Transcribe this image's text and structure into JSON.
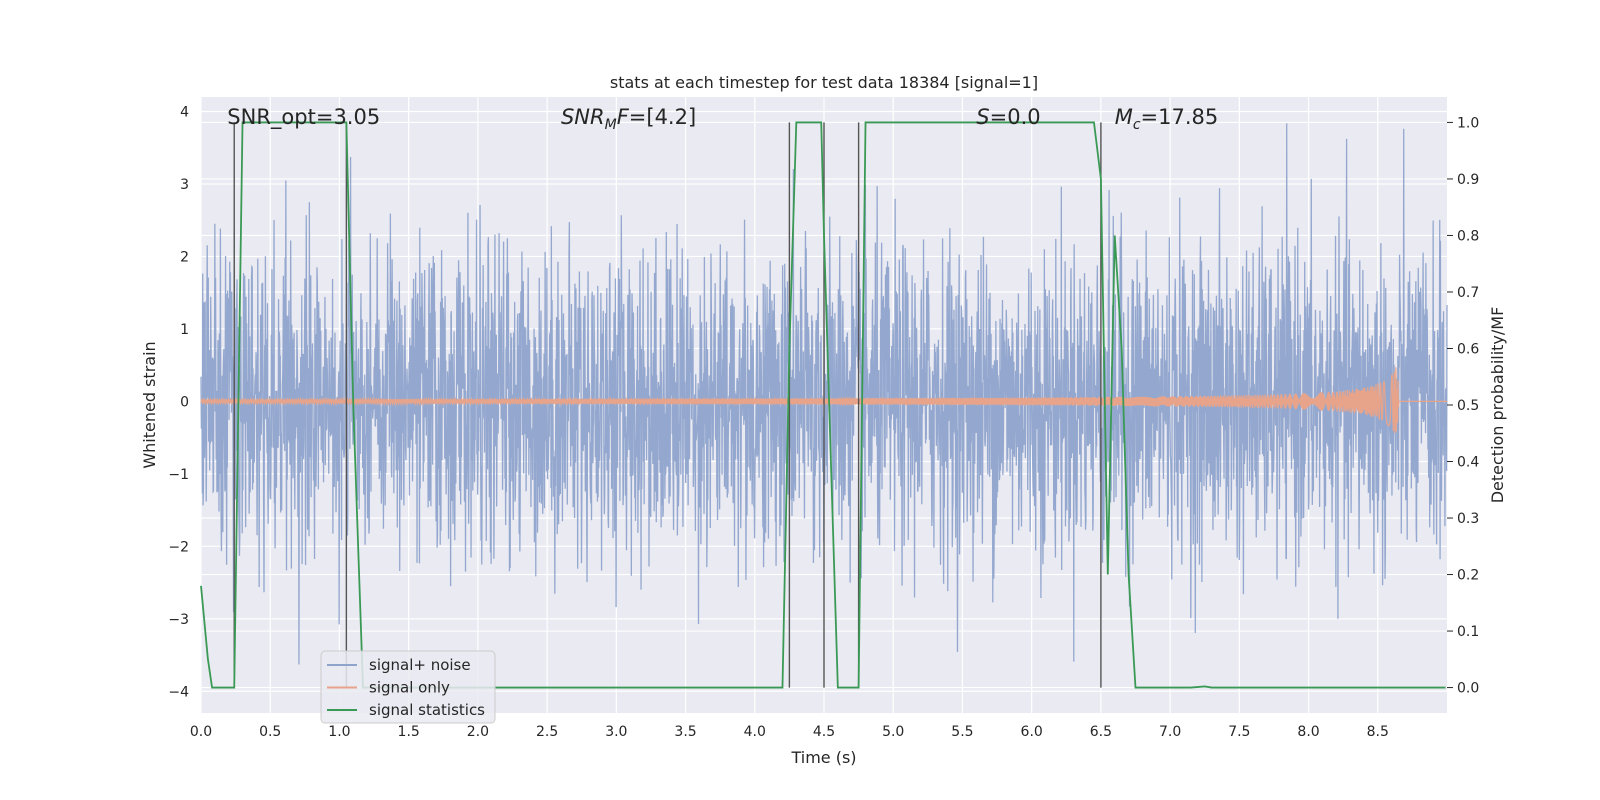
{
  "chart_data": {
    "type": "line",
    "title": "stats at each timestep for test data 18384 [signal=1]",
    "xlabel": "Time (s)",
    "ylabel": "Whitened strain",
    "y2label": "Detection probability/MF",
    "xlim": [
      0,
      9
    ],
    "ylim": [
      -4.3,
      4.2
    ],
    "y2lim": [
      -0.045,
      1.045
    ],
    "xticks": [
      "0.0",
      "0.5",
      "1.0",
      "1.5",
      "2.0",
      "2.5",
      "3.0",
      "3.5",
      "4.0",
      "4.5",
      "5.0",
      "5.5",
      "6.0",
      "6.5",
      "7.0",
      "7.5",
      "8.0",
      "8.5"
    ],
    "yticks": [
      "4",
      "3",
      "2",
      "1",
      "0",
      "−1",
      "−2",
      "−3",
      "−4"
    ],
    "y2ticks": [
      "1.0",
      "0.9",
      "0.8",
      "0.7",
      "0.6",
      "0.5",
      "0.4",
      "0.3",
      "0.2",
      "0.1",
      "0.0"
    ],
    "grid": true,
    "legend_position": "lower-left",
    "annotations": [
      {
        "prefix": "SNR_opt=",
        "value": "3.05",
        "x": 0.19
      },
      {
        "prefix_italic": "SNR",
        "sub": "M",
        "prefix_rest": "F=",
        "value": "[4.2]",
        "x": 2.6
      },
      {
        "prefix_italic": "S",
        "prefix_rest": "=",
        "value": "0.0",
        "x": 5.6
      },
      {
        "prefix_italic": "M",
        "sub": "c",
        "prefix_rest": "=",
        "value": "17.85",
        "x": 6.6
      }
    ],
    "vlines_x": [
      0.24,
      1.05,
      4.25,
      4.5,
      4.75,
      6.5
    ],
    "series": [
      {
        "name": "signal+ noise",
        "color": "#8fa4cc",
        "axis": "left",
        "description_value": "whitened noise, std ≈ 1"
      },
      {
        "name": "signal only",
        "color": "#e8a48a",
        "axis": "left",
        "chirp_end_x": 8.65,
        "chirp_peak_amplitude": 0.65
      },
      {
        "name": "signal statistics",
        "color": "#3a9a55",
        "axis": "right",
        "x": [
          0.0,
          0.05,
          0.08,
          0.24,
          0.3,
          0.33,
          1.05,
          1.1,
          1.17,
          4.2,
          4.25,
          4.3,
          4.48,
          4.5,
          4.6,
          4.72,
          4.75,
          4.8,
          4.85,
          6.45,
          6.5,
          6.55,
          6.6,
          6.65,
          6.7,
          6.75,
          7.15,
          7.25,
          7.3,
          8.99
        ],
        "y": [
          0.18,
          0.05,
          0.0,
          0.0,
          1.0,
          1.0,
          1.0,
          0.5,
          0.0,
          0.0,
          0.6,
          1.0,
          1.0,
          0.8,
          0.0,
          0.0,
          0.0,
          1.0,
          1.0,
          1.0,
          0.9,
          0.2,
          0.8,
          0.6,
          0.2,
          0.0,
          0.0,
          0.002,
          0.0,
          0.0
        ]
      }
    ]
  }
}
